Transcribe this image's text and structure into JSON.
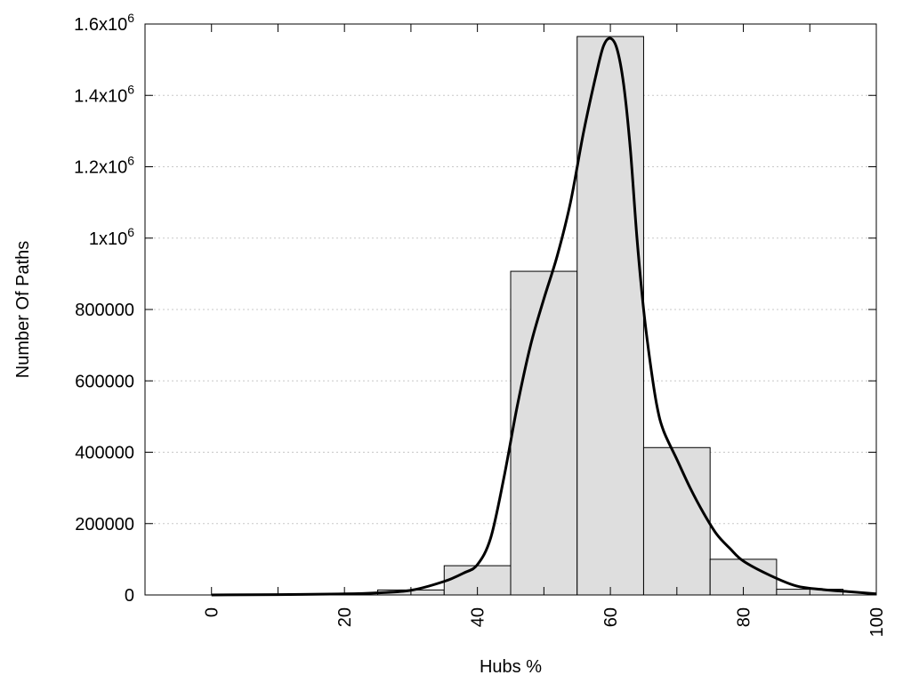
{
  "chart_data": {
    "type": "bar",
    "xlabel": "Hubs %",
    "ylabel": "Number Of Paths",
    "xlim": [
      -10,
      100
    ],
    "ylim": [
      0,
      1600000
    ],
    "x_ticks": [
      {
        "value": 0,
        "label": "0"
      },
      {
        "value": 20,
        "label": "20"
      },
      {
        "value": 40,
        "label": "40"
      },
      {
        "value": 60,
        "label": "60"
      },
      {
        "value": 80,
        "label": "80"
      },
      {
        "value": 100,
        "label": "100"
      }
    ],
    "y_ticks": [
      {
        "value": 0,
        "label": "0",
        "base": "",
        "exp": ""
      },
      {
        "value": 200000,
        "label": "200000",
        "base": "",
        "exp": ""
      },
      {
        "value": 400000,
        "label": "400000",
        "base": "",
        "exp": ""
      },
      {
        "value": 600000,
        "label": "600000",
        "base": "",
        "exp": ""
      },
      {
        "value": 800000,
        "label": "800000",
        "base": "",
        "exp": ""
      },
      {
        "value": 1000000,
        "label": "",
        "base": "1x10",
        "exp": "6"
      },
      {
        "value": 1200000,
        "label": "",
        "base": "1.2x10",
        "exp": "6"
      },
      {
        "value": 1400000,
        "label": "",
        "base": "1.4x10",
        "exp": "6"
      },
      {
        "value": 1600000,
        "label": "",
        "base": "1.6x10",
        "exp": "6"
      }
    ],
    "grid": "horizontal-dotted",
    "bar_color": "#dedede",
    "bar_edge_color": "#000000",
    "bar_width": 10,
    "bins": [
      {
        "x": 0,
        "value": 0
      },
      {
        "x": 10,
        "value": 0
      },
      {
        "x": 20,
        "value": 0
      },
      {
        "x": 30,
        "value": 14000
      },
      {
        "x": 40,
        "value": 82000
      },
      {
        "x": 50,
        "value": 907000
      },
      {
        "x": 60,
        "value": 1565000
      },
      {
        "x": 70,
        "value": 413000
      },
      {
        "x": 80,
        "value": 100000
      },
      {
        "x": 90,
        "value": 16000
      }
    ],
    "curve": {
      "color": "#000000",
      "points": [
        [
          0,
          0
        ],
        [
          10,
          1000
        ],
        [
          20,
          3000
        ],
        [
          25,
          6000
        ],
        [
          30,
          13000
        ],
        [
          35,
          38000
        ],
        [
          38,
          62000
        ],
        [
          40,
          85000
        ],
        [
          42,
          160000
        ],
        [
          44,
          330000
        ],
        [
          46,
          530000
        ],
        [
          48,
          700000
        ],
        [
          50,
          830000
        ],
        [
          52,
          950000
        ],
        [
          54,
          1100000
        ],
        [
          56,
          1300000
        ],
        [
          58,
          1470000
        ],
        [
          59,
          1540000
        ],
        [
          60,
          1560000
        ],
        [
          61,
          1530000
        ],
        [
          62,
          1430000
        ],
        [
          63,
          1250000
        ],
        [
          64,
          1000000
        ],
        [
          65,
          800000
        ],
        [
          66,
          650000
        ],
        [
          67,
          530000
        ],
        [
          68,
          460000
        ],
        [
          70,
          380000
        ],
        [
          72,
          300000
        ],
        [
          74,
          230000
        ],
        [
          76,
          170000
        ],
        [
          78,
          130000
        ],
        [
          80,
          95000
        ],
        [
          84,
          55000
        ],
        [
          88,
          25000
        ],
        [
          92,
          15000
        ],
        [
          96,
          9000
        ],
        [
          100,
          3000
        ]
      ]
    }
  }
}
